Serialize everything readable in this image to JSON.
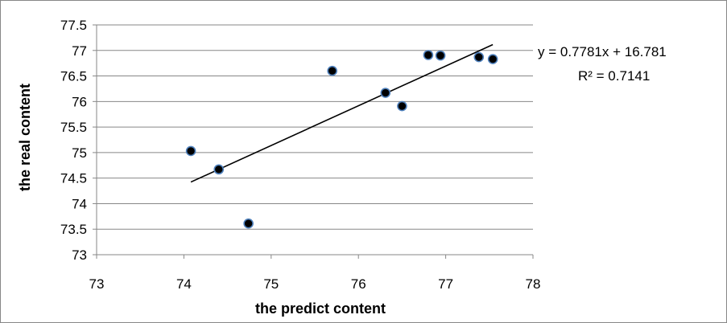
{
  "chart_data": {
    "type": "scatter",
    "xlabel": "the predict content",
    "ylabel": "the real content",
    "xlim": [
      73,
      78
    ],
    "ylim": [
      73,
      77.5
    ],
    "x_ticks": [
      "73",
      "74",
      "75",
      "76",
      "77",
      "78"
    ],
    "y_ticks": [
      "73",
      "73.5",
      "74",
      "74.5",
      "75",
      "75.5",
      "76",
      "76.5",
      "77",
      "77.5"
    ],
    "grid": "horizontal",
    "points": [
      {
        "x": 74.08,
        "y": 75.03
      },
      {
        "x": 74.4,
        "y": 74.67
      },
      {
        "x": 74.74,
        "y": 73.61
      },
      {
        "x": 75.7,
        "y": 76.6
      },
      {
        "x": 76.31,
        "y": 76.17
      },
      {
        "x": 76.5,
        "y": 75.91
      },
      {
        "x": 76.8,
        "y": 76.91
      },
      {
        "x": 76.94,
        "y": 76.9
      },
      {
        "x": 77.38,
        "y": 76.87
      },
      {
        "x": 77.54,
        "y": 76.83
      }
    ],
    "trendline": {
      "slope": 0.7781,
      "intercept": 16.781,
      "x_range": [
        74.08,
        77.54
      ],
      "equation": "y = 0.7781x + 16.781",
      "r_squared": "R² = 0.7141"
    },
    "colors": {
      "marker_fill": "#000000",
      "marker_edge": "#4f81bd",
      "gridline": "#878787",
      "trendline": "#000000"
    }
  }
}
